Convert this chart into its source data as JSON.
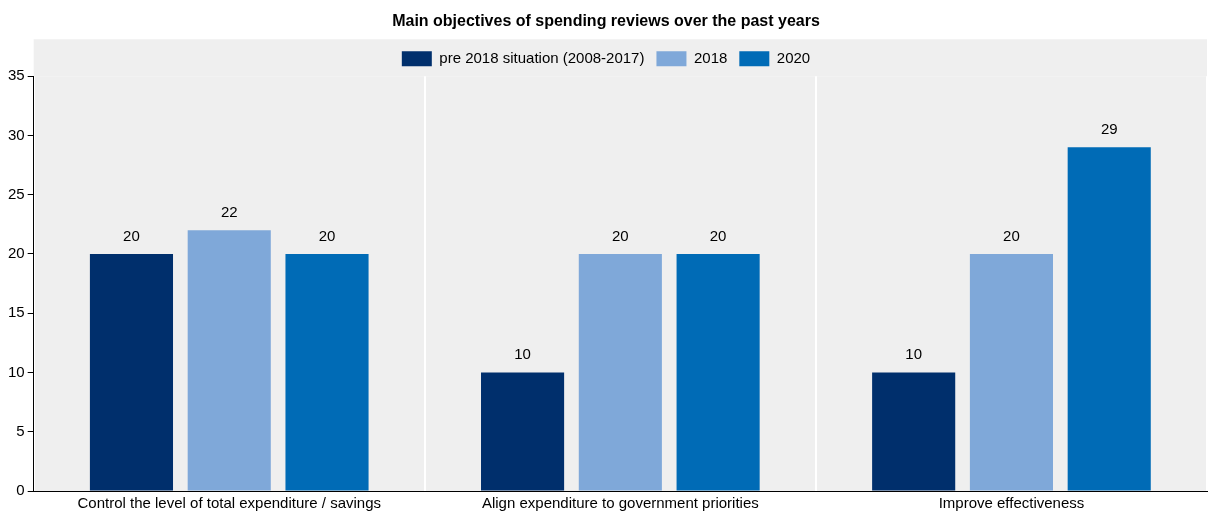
{
  "chart_data": {
    "type": "bar",
    "title": "Main objectives of spending reviews over the past years",
    "categories": [
      "Control the level of total expenditure / savings",
      "Align expenditure to government priorities",
      "Improve effectiveness"
    ],
    "series": [
      {
        "name": "pre 2018 situation (2008-2017)",
        "color": "#002f6c",
        "values": [
          20,
          10,
          10
        ]
      },
      {
        "name": "2018",
        "color": "#7fa8d9",
        "values": [
          22,
          20,
          20
        ]
      },
      {
        "name": "2020",
        "color": "#006bb6",
        "values": [
          20,
          20,
          29
        ]
      }
    ],
    "ylim": [
      0,
      35
    ],
    "yticks": [
      0,
      5,
      10,
      15,
      20,
      25,
      30,
      35
    ],
    "grid": "x",
    "legend": "top",
    "data_labels": true
  }
}
